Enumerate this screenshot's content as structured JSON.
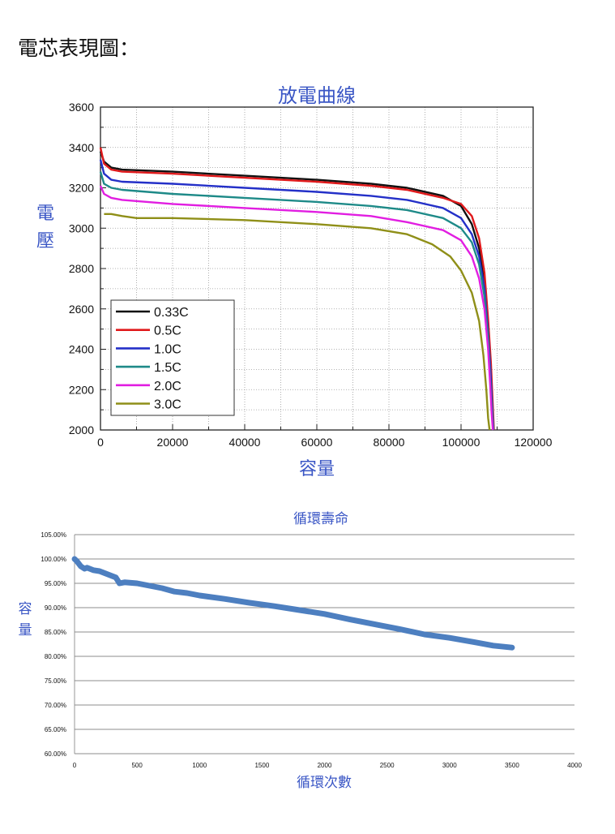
{
  "heading": "電芯表現圖：",
  "chart_data": [
    {
      "type": "line",
      "title": "放電曲線",
      "xlabel": "容量",
      "ylabel": "電壓",
      "xlim": [
        0,
        120000
      ],
      "ylim": [
        2000,
        3600
      ],
      "xticks": [
        "0",
        "20000",
        "40000",
        "60000",
        "80000",
        "100000",
        "120000"
      ],
      "yticks": [
        "2000",
        "2200",
        "2400",
        "2600",
        "2800",
        "3000",
        "3200",
        "3400",
        "3600"
      ],
      "grid": true,
      "legend_position": "bottom-left",
      "series": [
        {
          "name": "0.33C",
          "color": "#111111",
          "x": [
            0,
            1000,
            3000,
            6000,
            20000,
            40000,
            60000,
            75000,
            85000,
            95000,
            100000,
            103000,
            105000,
            106500,
            107500,
            108200,
            108700,
            109000
          ],
          "y": [
            3380,
            3330,
            3300,
            3290,
            3280,
            3260,
            3240,
            3220,
            3200,
            3160,
            3110,
            3020,
            2900,
            2720,
            2500,
            2300,
            2120,
            2000
          ]
        },
        {
          "name": "0.5C",
          "color": "#e0191b",
          "x": [
            0,
            1000,
            3000,
            6000,
            20000,
            40000,
            60000,
            75000,
            85000,
            95000,
            100000,
            103000,
            105000,
            106500,
            107500,
            108300,
            108800,
            109100
          ],
          "y": [
            3400,
            3320,
            3290,
            3280,
            3270,
            3250,
            3230,
            3210,
            3190,
            3150,
            3120,
            3060,
            2950,
            2780,
            2550,
            2330,
            2120,
            2000
          ]
        },
        {
          "name": "1.0C",
          "color": "#2430c8",
          "x": [
            0,
            1000,
            3000,
            6000,
            20000,
            40000,
            60000,
            75000,
            85000,
            95000,
            100000,
            103000,
            105000,
            106500,
            107500,
            108200,
            108700,
            109000
          ],
          "y": [
            3340,
            3270,
            3240,
            3230,
            3220,
            3200,
            3180,
            3160,
            3140,
            3100,
            3050,
            2970,
            2860,
            2700,
            2480,
            2280,
            2100,
            2000
          ]
        },
        {
          "name": "1.5C",
          "color": "#1e8a88",
          "x": [
            0,
            1000,
            3000,
            6000,
            20000,
            40000,
            60000,
            75000,
            85000,
            95000,
            100000,
            103000,
            105000,
            106500,
            107500,
            108100,
            108600,
            108900
          ],
          "y": [
            3280,
            3220,
            3200,
            3190,
            3170,
            3150,
            3130,
            3110,
            3090,
            3050,
            3000,
            2930,
            2820,
            2660,
            2450,
            2250,
            2090,
            2000
          ]
        },
        {
          "name": "2.0C",
          "color": "#e11ee1",
          "x": [
            0,
            1000,
            3000,
            6000,
            20000,
            40000,
            60000,
            75000,
            85000,
            95000,
            100000,
            103000,
            105000,
            106500,
            107500,
            108100,
            108500,
            108800
          ],
          "y": [
            3210,
            3170,
            3150,
            3140,
            3120,
            3100,
            3080,
            3060,
            3030,
            2990,
            2940,
            2860,
            2750,
            2600,
            2400,
            2220,
            2080,
            2000
          ]
        },
        {
          "name": "3.0C",
          "color": "#8f8f18",
          "x": [
            1000,
            3000,
            6000,
            10000,
            20000,
            40000,
            60000,
            75000,
            85000,
            92000,
            97000,
            100000,
            103000,
            105000,
            106200,
            107000,
            107500,
            107900
          ],
          "y": [
            3070,
            3070,
            3060,
            3050,
            3050,
            3040,
            3020,
            3000,
            2970,
            2920,
            2860,
            2790,
            2680,
            2540,
            2370,
            2200,
            2060,
            2000
          ]
        }
      ]
    },
    {
      "type": "line",
      "title": "循環壽命",
      "xlabel": "循環次數",
      "ylabel": "容量",
      "xlim": [
        0,
        4000
      ],
      "ylim": [
        0.6,
        1.05
      ],
      "xticks": [
        "0",
        "500",
        "1000",
        "1500",
        "2000",
        "2500",
        "3000",
        "3500",
        "4000"
      ],
      "yticks": [
        "60.00%",
        "65.00%",
        "70.00%",
        "75.00%",
        "80.00%",
        "85.00%",
        "90.00%",
        "95.00%",
        "100.00%",
        "105.00%"
      ],
      "grid": true,
      "series": [
        {
          "color": "#4d7fc0",
          "x": [
            0,
            20,
            50,
            80,
            100,
            150,
            200,
            250,
            300,
            330,
            360,
            400,
            500,
            600,
            700,
            800,
            900,
            1000,
            1200,
            1400,
            1600,
            1800,
            2000,
            2200,
            2400,
            2600,
            2800,
            3000,
            3200,
            3350,
            3500
          ],
          "y": [
            1.0,
            0.995,
            0.985,
            0.98,
            0.982,
            0.977,
            0.975,
            0.97,
            0.965,
            0.962,
            0.95,
            0.952,
            0.95,
            0.945,
            0.94,
            0.933,
            0.93,
            0.925,
            0.918,
            0.91,
            0.903,
            0.895,
            0.887,
            0.876,
            0.866,
            0.856,
            0.845,
            0.838,
            0.829,
            0.822,
            0.818
          ]
        }
      ]
    }
  ]
}
